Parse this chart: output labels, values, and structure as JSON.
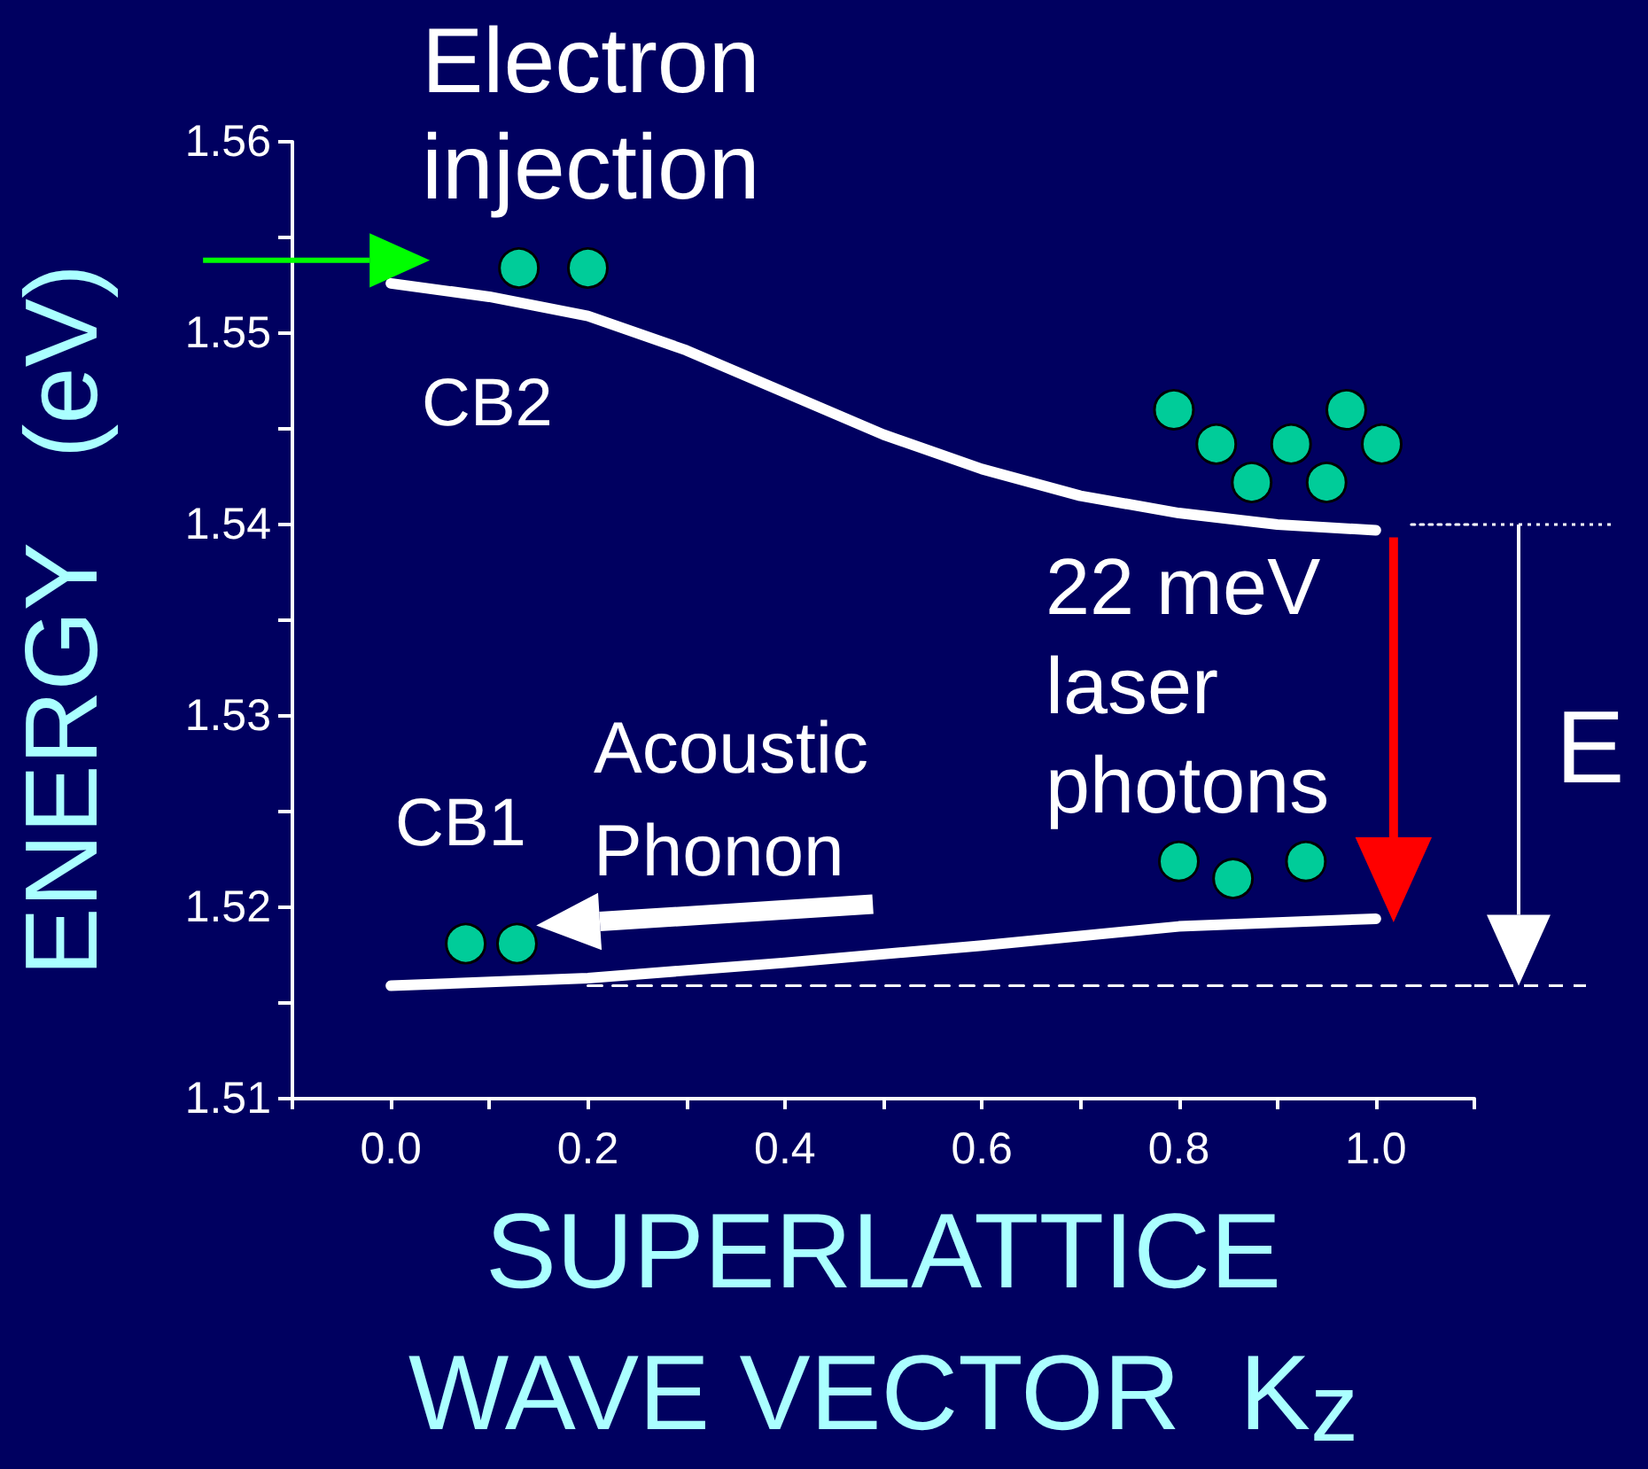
{
  "chart_data": {
    "type": "line",
    "xlabel": "SUPERLATTICE\nWAVE VECTOR  K$_{z}$",
    "ylabel": "ENERGY   (eV)",
    "xlim": [
      -0.1,
      1.1
    ],
    "xticks": [
      {
        "value": -0.1,
        "label": null
      },
      {
        "value": 0,
        "label": "0.0"
      },
      {
        "value": 0.1,
        "label": null
      },
      {
        "value": 0.2,
        "label": "0.2"
      },
      {
        "value": 0.3,
        "label": null
      },
      {
        "value": 0.4,
        "label": "0.4"
      },
      {
        "value": 0.5,
        "label": null
      },
      {
        "value": 0.6,
        "label": "0.6"
      },
      {
        "value": 0.7,
        "label": null
      },
      {
        "value": 0.8,
        "label": "0.8"
      },
      {
        "value": 0.9,
        "label": null
      },
      {
        "value": 1,
        "label": "1.0"
      },
      {
        "value": 1.1,
        "label": null
      }
    ],
    "ylim": [
      1.51,
      1.56
    ],
    "yticks": [
      1.51,
      {
        "value": 1.515,
        "label": null
      },
      1.52,
      {
        "value": 1.525,
        "label": null
      },
      1.53,
      {
        "value": 1.535,
        "label": null
      },
      1.54,
      {
        "value": 1.545,
        "label": null
      },
      1.55,
      {
        "value": 1.555,
        "label": null
      },
      1.56
    ],
    "marker": "none",
    "series": [
      {
        "type": "line",
        "color": "#ffffff",
        "line_style": "solid",
        "x": [
          0,
          0.1,
          0.2,
          0.3,
          0.4,
          0.5,
          0.6,
          0.7,
          0.8,
          0.9,
          1
        ],
        "values": [
          1.5526,
          1.5519,
          1.5509,
          1.5491,
          1.5469,
          1.5447,
          1.5429,
          1.5415,
          1.5406,
          1.54,
          1.5397
        ]
      },
      {
        "type": "line",
        "color": "#ffffff",
        "line_style": "solid",
        "x": [
          0,
          0.2,
          0.4,
          0.6,
          0.8,
          1
        ],
        "values": [
          1.5159,
          1.5163,
          1.5171,
          1.518,
          1.519,
          1.5194
        ]
      },
      {
        "type": "line",
        "color": "#ffffff",
        "line_style": "dotted",
        "x": [
          1.036,
          1.1
        ],
        "values": [
          1.54,
          1.54
        ]
      },
      {
        "type": "line",
        "color": "#ffffff",
        "line_style": "dashed",
        "x": [
          0.2,
          1.1
        ],
        "values": [
          1.5159,
          1.5159
        ]
      },
      {
        "type": "scatter",
        "color": "#00cc99",
        "marker": "circle",
        "x": [
          0.13,
          0.2,
          0.795,
          0.838,
          0.874,
          0.914,
          0.95,
          0.97,
          1.006,
          0.8,
          0.855,
          0.929,
          0.076,
          0.128
        ],
        "values": [
          1.5534,
          1.5534,
          1.546,
          1.5442,
          1.5422,
          1.5442,
          1.5422,
          1.546,
          1.5442,
          1.5224,
          1.5215,
          1.5224,
          1.5181,
          1.5181
        ]
      }
    ],
    "annotations": [
      "Electron\ninjection",
      "E",
      "CB2",
      "CB1",
      "Acoustic\nPhonon",
      "22 meV\nlaser\nphotons"
    ]
  }
}
